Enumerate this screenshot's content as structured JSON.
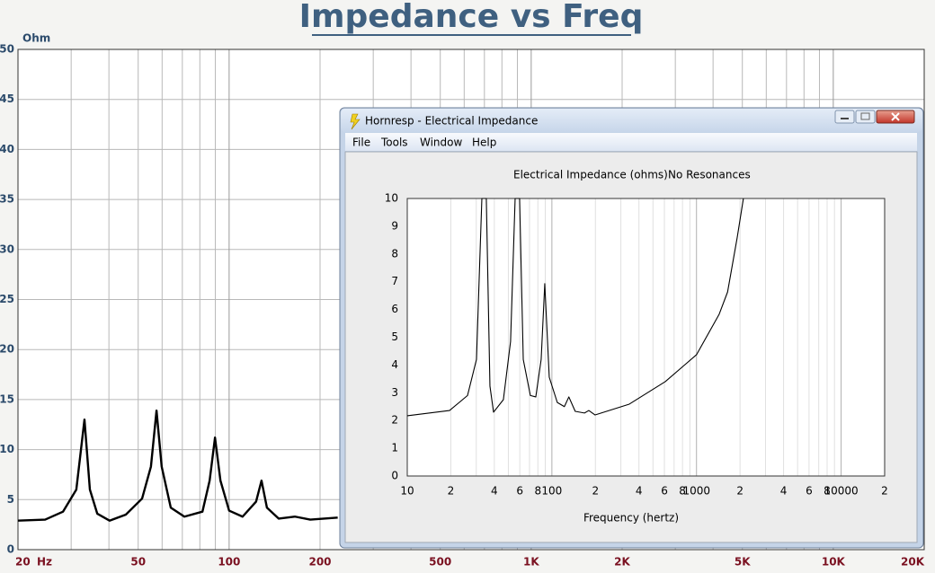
{
  "window": {
    "title": "Hornresp - Electrical Impedance",
    "menu": [
      "File",
      "Tools",
      "Window",
      "Help"
    ]
  },
  "chart_data": [
    {
      "type": "line",
      "title": "Impedance vs Freq",
      "ylabel": "Ohm",
      "xlabel": "Hz",
      "xscale": "log",
      "xlim": [
        20,
        20000
      ],
      "ylim": [
        0,
        50
      ],
      "xticks": [
        20,
        50,
        100,
        200,
        500,
        {
          "value": 1000,
          "label": "1K"
        },
        {
          "value": 2000,
          "label": "2K"
        },
        {
          "value": 5000,
          "label": "5K"
        },
        {
          "value": 10000,
          "label": "10K"
        },
        {
          "value": 20000,
          "label": "20K"
        }
      ],
      "yticks": [
        0,
        5,
        10,
        15,
        20,
        25,
        30,
        35,
        40,
        45,
        50
      ],
      "grid": "both",
      "minor_grid": true,
      "color": "#000000",
      "x": [
        20,
        24.6,
        28.2,
        31.2,
        33.2,
        34.6,
        36.6,
        40.2,
        45.5,
        51.5,
        55.1,
        57.5,
        59.8,
        64.1,
        71.1,
        81.6,
        86.2,
        89.8,
        93.6,
        100,
        110.8,
        122.8,
        128,
        133.4,
        146,
        165.4,
        185.6,
        228.8
      ],
      "values": [
        2.9,
        3.0,
        3.8,
        6.0,
        13.0,
        6.0,
        3.6,
        2.9,
        3.5,
        5.1,
        8.3,
        13.9,
        8.3,
        4.2,
        3.3,
        3.8,
        6.9,
        11.2,
        6.9,
        3.9,
        3.3,
        4.8,
        6.9,
        4.2,
        3.1,
        3.3,
        3.0,
        3.2
      ]
    },
    {
      "type": "line",
      "title": "Electrical Impedance (ohms)",
      "subtitle": "No Resonances",
      "xlabel": "Frequency (hertz)",
      "xscale": "log",
      "xlim": [
        10,
        20000
      ],
      "ylim": [
        0,
        10
      ],
      "xticks": [
        10,
        {
          "value": 20,
          "label": "2"
        },
        {
          "value": 40,
          "label": "4"
        },
        {
          "value": 60,
          "label": "6"
        },
        {
          "value": 80,
          "label": "8"
        },
        100,
        {
          "value": 200,
          "label": "2"
        },
        {
          "value": 400,
          "label": "4"
        },
        {
          "value": 600,
          "label": "6"
        },
        {
          "value": 800,
          "label": "8"
        },
        1000,
        {
          "value": 2000,
          "label": "2"
        },
        {
          "value": 4000,
          "label": "4"
        },
        {
          "value": 6000,
          "label": "6"
        },
        {
          "value": 8000,
          "label": "8"
        },
        10000,
        {
          "value": 20000,
          "label": "2"
        }
      ],
      "yticks": [
        0,
        1,
        2,
        3,
        4,
        5,
        6,
        7,
        8,
        9,
        10
      ],
      "grid": "x",
      "minor_grid": true,
      "color": "#000000",
      "x": [
        10,
        19.6,
        26.1,
        30.1,
        32.8,
        35.2,
        37.3,
        39.5,
        46.2,
        51.8,
        55.7,
        59.8,
        63.4,
        71.0,
        77.4,
        84.3,
        89.3,
        95.9,
        109,
        122,
        131,
        145,
        168,
        180,
        199,
        343,
        608,
        1000,
        1435,
        1640,
        1910,
        2110
      ],
      "values": [
        2.17,
        2.36,
        2.9,
        4.2,
        10,
        10,
        3.24,
        2.3,
        2.75,
        4.85,
        10,
        10,
        4.2,
        2.9,
        2.85,
        4.2,
        6.93,
        3.56,
        2.65,
        2.5,
        2.85,
        2.33,
        2.27,
        2.36,
        2.2,
        2.59,
        3.4,
        4.37,
        5.83,
        6.63,
        8.58,
        10
      ]
    }
  ]
}
